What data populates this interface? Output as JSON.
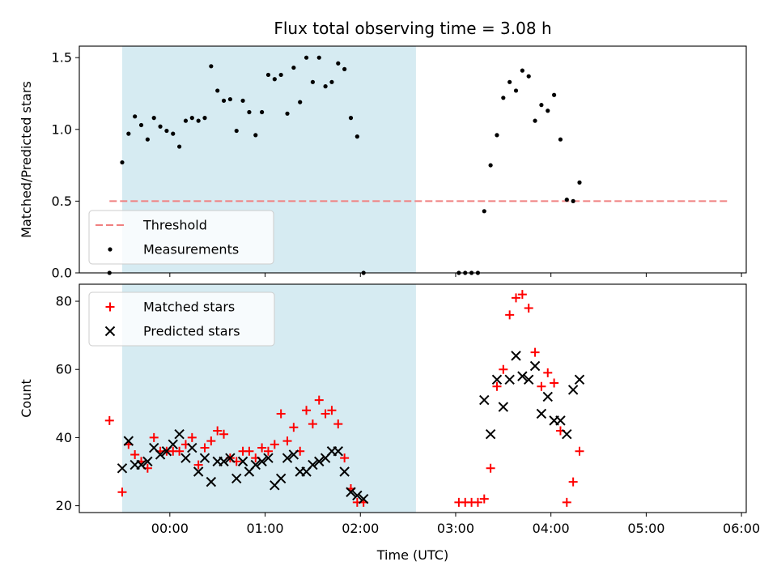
{
  "title": "Flux total observing time = 3.08 h",
  "colors": {
    "threshold": "#f08080",
    "measurement": "#000000",
    "matched": "#ff0000",
    "predicted": "#000000",
    "span": "#add8e6"
  },
  "chart_data": [
    {
      "type": "scatter",
      "ylabel": "Matched/Predicted stars",
      "ylim": [
        0,
        1.58
      ],
      "yticks": [
        0.0,
        0.5,
        1.0,
        1.5
      ],
      "ytick_labels": [
        "0.0",
        "0.5",
        "1.0",
        "1.5"
      ],
      "xlim": [
        "23:03",
        "06:03"
      ],
      "shaded_span": [
        "23:30",
        "02:35"
      ],
      "threshold": {
        "name": "Threshold",
        "value": 0.5,
        "x_range": [
          "23:22",
          "05:52"
        ],
        "style": "dashed"
      },
      "legend": {
        "placement": "lower-left",
        "entries": [
          "Threshold",
          "Measurements"
        ]
      },
      "series": [
        {
          "name": "Measurements",
          "marker": "dot",
          "points": [
            [
              "23:22",
              0.0
            ],
            [
              "23:30",
              0.77
            ],
            [
              "23:34",
              0.97
            ],
            [
              "23:38",
              1.09
            ],
            [
              "23:42",
              1.03
            ],
            [
              "23:46",
              0.93
            ],
            [
              "23:50",
              1.08
            ],
            [
              "23:54",
              1.02
            ],
            [
              "23:58",
              0.99
            ],
            [
              "00:02",
              0.97
            ],
            [
              "00:06",
              0.88
            ],
            [
              "00:10",
              1.06
            ],
            [
              "00:14",
              1.08
            ],
            [
              "00:18",
              1.06
            ],
            [
              "00:22",
              1.08
            ],
            [
              "00:26",
              1.44
            ],
            [
              "00:30",
              1.27
            ],
            [
              "00:34",
              1.2
            ],
            [
              "00:38",
              1.21
            ],
            [
              "00:42",
              0.99
            ],
            [
              "00:46",
              1.2
            ],
            [
              "00:50",
              1.12
            ],
            [
              "00:54",
              0.96
            ],
            [
              "00:58",
              1.12
            ],
            [
              "01:02",
              1.38
            ],
            [
              "01:06",
              1.35
            ],
            [
              "01:10",
              1.38
            ],
            [
              "01:14",
              1.11
            ],
            [
              "01:18",
              1.43
            ],
            [
              "01:22",
              1.19
            ],
            [
              "01:26",
              1.5
            ],
            [
              "01:30",
              1.33
            ],
            [
              "01:34",
              1.5
            ],
            [
              "01:38",
              1.3
            ],
            [
              "01:42",
              1.33
            ],
            [
              "01:46",
              1.46
            ],
            [
              "01:50",
              1.42
            ],
            [
              "01:54",
              1.08
            ],
            [
              "01:58",
              0.95
            ],
            [
              "02:02",
              0.0
            ],
            [
              "03:02",
              0.0
            ],
            [
              "03:06",
              0.0
            ],
            [
              "03:10",
              0.0
            ],
            [
              "03:14",
              0.0
            ],
            [
              "03:18",
              0.43
            ],
            [
              "03:22",
              0.75
            ],
            [
              "03:26",
              0.96
            ],
            [
              "03:30",
              1.22
            ],
            [
              "03:34",
              1.33
            ],
            [
              "03:38",
              1.27
            ],
            [
              "03:42",
              1.41
            ],
            [
              "03:46",
              1.37
            ],
            [
              "03:50",
              1.06
            ],
            [
              "03:54",
              1.17
            ],
            [
              "03:58",
              1.13
            ],
            [
              "04:02",
              1.24
            ],
            [
              "04:06",
              0.93
            ],
            [
              "04:10",
              0.51
            ],
            [
              "04:14",
              0.5
            ],
            [
              "04:18",
              0.63
            ]
          ]
        }
      ]
    },
    {
      "type": "scatter",
      "xlabel": "Time (UTC)",
      "ylabel": "Count",
      "ylim": [
        18,
        85
      ],
      "yticks": [
        20,
        40,
        60,
        80
      ],
      "ytick_labels": [
        "20",
        "40",
        "60",
        "80"
      ],
      "xlim": [
        "23:03",
        "06:03"
      ],
      "xticks": [
        "00:00",
        "01:00",
        "02:00",
        "03:00",
        "04:00",
        "05:00",
        "06:00"
      ],
      "xtick_labels": [
        "00:00",
        "01:00",
        "02:00",
        "03:00",
        "04:00",
        "05:00",
        "06:00"
      ],
      "shaded_span": [
        "23:30",
        "02:35"
      ],
      "legend": {
        "placement": "upper-left",
        "entries": [
          "Matched stars",
          "Predicted stars"
        ]
      },
      "series": [
        {
          "name": "Matched stars",
          "marker": "plus",
          "points": [
            [
              "23:22",
              45
            ],
            [
              "23:30",
              24
            ],
            [
              "23:34",
              38
            ],
            [
              "23:38",
              35
            ],
            [
              "23:42",
              33
            ],
            [
              "23:46",
              31
            ],
            [
              "23:50",
              40
            ],
            [
              "23:54",
              36
            ],
            [
              "23:58",
              36
            ],
            [
              "00:02",
              36
            ],
            [
              "00:06",
              36
            ],
            [
              "00:10",
              38
            ],
            [
              "00:14",
              40
            ],
            [
              "00:18",
              32
            ],
            [
              "00:22",
              37
            ],
            [
              "00:26",
              39
            ],
            [
              "00:30",
              42
            ],
            [
              "00:34",
              41
            ],
            [
              "00:38",
              34
            ],
            [
              "00:42",
              33
            ],
            [
              "00:46",
              36
            ],
            [
              "00:50",
              36
            ],
            [
              "00:54",
              34
            ],
            [
              "00:58",
              37
            ],
            [
              "01:02",
              36
            ],
            [
              "01:06",
              38
            ],
            [
              "01:10",
              47
            ],
            [
              "01:14",
              39
            ],
            [
              "01:18",
              43
            ],
            [
              "01:22",
              36
            ],
            [
              "01:26",
              48
            ],
            [
              "01:30",
              44
            ],
            [
              "01:34",
              51
            ],
            [
              "01:38",
              47
            ],
            [
              "01:42",
              48
            ],
            [
              "01:46",
              44
            ],
            [
              "01:50",
              34
            ],
            [
              "01:54",
              25
            ],
            [
              "01:58",
              21
            ],
            [
              "02:02",
              21
            ],
            [
              "03:02",
              21
            ],
            [
              "03:06",
              21
            ],
            [
              "03:10",
              21
            ],
            [
              "03:14",
              21
            ],
            [
              "03:18",
              22
            ],
            [
              "03:22",
              31
            ],
            [
              "03:26",
              55
            ],
            [
              "03:30",
              60
            ],
            [
              "03:34",
              76
            ],
            [
              "03:38",
              81
            ],
            [
              "03:42",
              82
            ],
            [
              "03:46",
              78
            ],
            [
              "03:50",
              65
            ],
            [
              "03:54",
              55
            ],
            [
              "03:58",
              59
            ],
            [
              "04:02",
              56
            ],
            [
              "04:06",
              42
            ],
            [
              "04:10",
              21
            ],
            [
              "04:14",
              27
            ],
            [
              "04:18",
              36
            ]
          ]
        },
        {
          "name": "Predicted stars",
          "marker": "x",
          "points": [
            [
              "23:30",
              31
            ],
            [
              "23:34",
              39
            ],
            [
              "23:38",
              32
            ],
            [
              "23:42",
              32
            ],
            [
              "23:46",
              33
            ],
            [
              "23:50",
              37
            ],
            [
              "23:54",
              35
            ],
            [
              "23:58",
              36
            ],
            [
              "00:02",
              38
            ],
            [
              "00:06",
              41
            ],
            [
              "00:10",
              34
            ],
            [
              "00:14",
              37
            ],
            [
              "00:18",
              30
            ],
            [
              "00:22",
              34
            ],
            [
              "00:26",
              27
            ],
            [
              "00:30",
              33
            ],
            [
              "00:34",
              33
            ],
            [
              "00:38",
              34
            ],
            [
              "00:42",
              28
            ],
            [
              "00:46",
              33
            ],
            [
              "00:50",
              30
            ],
            [
              "00:54",
              32
            ],
            [
              "00:58",
              33
            ],
            [
              "01:02",
              34
            ],
            [
              "01:06",
              26
            ],
            [
              "01:10",
              28
            ],
            [
              "01:14",
              34
            ],
            [
              "01:18",
              35
            ],
            [
              "01:22",
              30
            ],
            [
              "01:26",
              30
            ],
            [
              "01:30",
              32
            ],
            [
              "01:34",
              33
            ],
            [
              "01:38",
              34
            ],
            [
              "01:42",
              36
            ],
            [
              "01:46",
              36
            ],
            [
              "01:50",
              30
            ],
            [
              "01:54",
              24
            ],
            [
              "01:58",
              23
            ],
            [
              "02:02",
              22
            ],
            [
              "03:18",
              51
            ],
            [
              "03:22",
              41
            ],
            [
              "03:26",
              57
            ],
            [
              "03:30",
              49
            ],
            [
              "03:34",
              57
            ],
            [
              "03:38",
              64
            ],
            [
              "03:42",
              58
            ],
            [
              "03:46",
              57
            ],
            [
              "03:50",
              61
            ],
            [
              "03:54",
              47
            ],
            [
              "03:58",
              52
            ],
            [
              "04:02",
              45
            ],
            [
              "04:06",
              45
            ],
            [
              "04:10",
              41
            ],
            [
              "04:14",
              54
            ],
            [
              "04:18",
              57
            ]
          ]
        }
      ]
    }
  ]
}
